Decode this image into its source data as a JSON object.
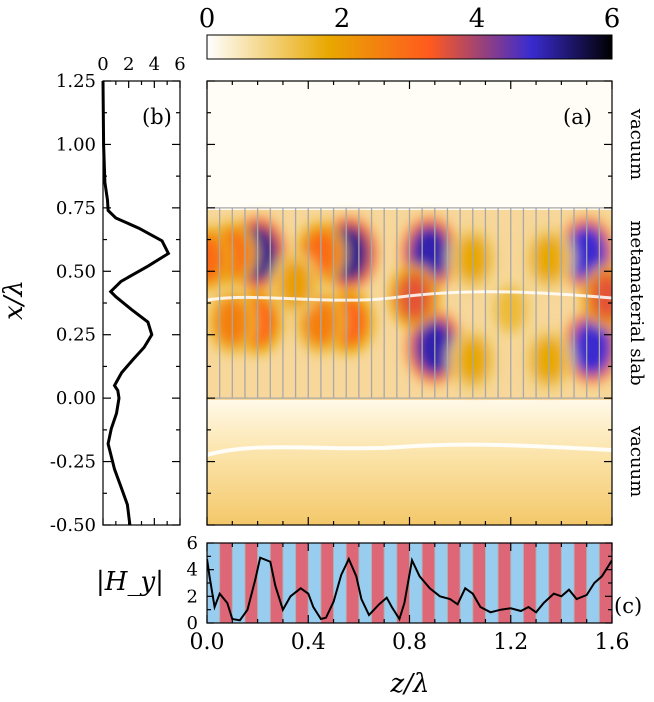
{
  "chart_data": [
    {
      "id": "a",
      "type": "heatmap",
      "panel_label": "(a)",
      "title": "",
      "xlabel": "z/λ",
      "ylabel": "x/λ",
      "xlim": [
        0.0,
        1.6
      ],
      "ylim": [
        -0.5,
        1.25
      ],
      "x_ticks": [
        0.0,
        0.4,
        0.8,
        1.2,
        1.6
      ],
      "x_tick_labels": [
        "0.0",
        "0.4",
        "0.8",
        "1.2",
        "1.6"
      ],
      "y_ticks": [
        -0.5,
        -0.25,
        0.0,
        0.25,
        0.5,
        0.75,
        1.0,
        1.25
      ],
      "y_tick_labels": [
        "-0.50",
        "-0.25",
        "0.00",
        "0.25",
        "0.50",
        "0.75",
        "1.00",
        "1.25"
      ],
      "colorbar": {
        "min": 0,
        "max": 6,
        "ticks": [
          0,
          2,
          4,
          6
        ],
        "tick_labels": [
          "0",
          "2",
          "4",
          "6"
        ],
        "colors": [
          "#ffffff",
          "#e8a800",
          "#ff5a1e",
          "#3a2bd0",
          "#000000"
        ]
      },
      "slab": {
        "x_from": 0.0,
        "x_to": 0.75,
        "layer_period_z": 0.05
      },
      "region_labels": [
        {
          "text": "vacuum",
          "x": 1.0
        },
        {
          "text": "metamaterial slab",
          "x": 0.375
        },
        {
          "text": "vacuum",
          "x": -0.25
        }
      ],
      "hotspots": [
        {
          "z": 0.2,
          "x": 0.57,
          "value": 5.2
        },
        {
          "z": 0.56,
          "x": 0.57,
          "value": 5.2
        },
        {
          "z": 0.2,
          "x": 0.3,
          "value": 3.2
        },
        {
          "z": 0.56,
          "x": 0.3,
          "value": 3.2
        },
        {
          "z": 0.1,
          "x": 0.57,
          "value": 3.0
        },
        {
          "z": 0.45,
          "x": 0.57,
          "value": 3.0
        },
        {
          "z": 0.1,
          "x": 0.3,
          "value": 2.6
        },
        {
          "z": 0.45,
          "x": 0.3,
          "value": 2.6
        },
        {
          "z": 0.0,
          "x": 0.55,
          "value": 3.0
        },
        {
          "z": 0.35,
          "x": 0.45,
          "value": 2.0
        },
        {
          "z": 0.88,
          "x": 0.57,
          "value": 5.0
        },
        {
          "z": 0.9,
          "x": 0.2,
          "value": 5.0
        },
        {
          "z": 0.82,
          "x": 0.4,
          "value": 3.5
        },
        {
          "z": 1.5,
          "x": 0.57,
          "value": 4.8
        },
        {
          "z": 1.52,
          "x": 0.2,
          "value": 4.8
        },
        {
          "z": 1.58,
          "x": 0.4,
          "value": 3.5
        },
        {
          "z": 1.05,
          "x": 0.55,
          "value": 1.8
        },
        {
          "z": 1.05,
          "x": 0.15,
          "value": 1.8
        },
        {
          "z": 1.35,
          "x": 0.55,
          "value": 1.8
        },
        {
          "z": 1.35,
          "x": 0.15,
          "value": 1.8
        },
        {
          "z": 1.2,
          "x": 0.35,
          "value": 1.4
        }
      ]
    },
    {
      "id": "b",
      "type": "line",
      "panel_label": "(b)",
      "xlabel": "",
      "ylabel": "x/λ",
      "xlim": [
        0,
        6
      ],
      "ylim": [
        -0.5,
        1.25
      ],
      "x_ticks": [
        0,
        2,
        4,
        6
      ],
      "x_tick_labels": [
        "0",
        "2",
        "4",
        "6"
      ],
      "points": [
        [
          2.1,
          -0.5
        ],
        [
          1.9,
          -0.42
        ],
        [
          1.4,
          -0.35
        ],
        [
          0.9,
          -0.28
        ],
        [
          0.6,
          -0.22
        ],
        [
          0.4,
          -0.18
        ],
        [
          0.65,
          -0.12
        ],
        [
          1.05,
          -0.06
        ],
        [
          1.25,
          0.0
        ],
        [
          1.15,
          0.03
        ],
        [
          0.9,
          0.05
        ],
        [
          1.45,
          0.1
        ],
        [
          2.3,
          0.15
        ],
        [
          3.2,
          0.2
        ],
        [
          3.8,
          0.25
        ],
        [
          3.5,
          0.3
        ],
        [
          2.2,
          0.35
        ],
        [
          1.0,
          0.4
        ],
        [
          0.6,
          0.42
        ],
        [
          1.4,
          0.46
        ],
        [
          3.5,
          0.52
        ],
        [
          5.1,
          0.57
        ],
        [
          4.6,
          0.62
        ],
        [
          2.8,
          0.67
        ],
        [
          1.0,
          0.71
        ],
        [
          0.4,
          0.74
        ],
        [
          0.35,
          0.78
        ],
        [
          0.15,
          0.85
        ],
        [
          0.05,
          1.0
        ],
        [
          0.0,
          1.25
        ]
      ]
    },
    {
      "id": "c",
      "type": "line",
      "panel_label": "(c)",
      "xlabel": "z/λ",
      "ylabel": "|H_y|",
      "xlim": [
        0.0,
        1.6
      ],
      "ylim": [
        0,
        6
      ],
      "y_ticks": [
        0,
        2,
        4,
        6
      ],
      "y_tick_labels": [
        "0",
        "2",
        "4",
        "6"
      ],
      "background_stripes": {
        "period_z": 0.05,
        "colors": [
          "#99cdf0",
          "#dd6677"
        ]
      },
      "points": [
        [
          0.0,
          4.8
        ],
        [
          0.01,
          3.5
        ],
        [
          0.03,
          1.2
        ],
        [
          0.05,
          2.2
        ],
        [
          0.08,
          1.5
        ],
        [
          0.1,
          0.3
        ],
        [
          0.13,
          0.2
        ],
        [
          0.16,
          1.0
        ],
        [
          0.19,
          3.2
        ],
        [
          0.21,
          4.9
        ],
        [
          0.25,
          4.6
        ],
        [
          0.27,
          2.8
        ],
        [
          0.3,
          1.0
        ],
        [
          0.33,
          2.0
        ],
        [
          0.37,
          2.6
        ],
        [
          0.4,
          2.2
        ],
        [
          0.42,
          1.2
        ],
        [
          0.45,
          0.3
        ],
        [
          0.47,
          0.4
        ],
        [
          0.5,
          1.6
        ],
        [
          0.53,
          3.6
        ],
        [
          0.56,
          4.8
        ],
        [
          0.59,
          3.5
        ],
        [
          0.61,
          1.8
        ],
        [
          0.64,
          0.6
        ],
        [
          0.68,
          1.4
        ],
        [
          0.71,
          1.9
        ],
        [
          0.73,
          1.2
        ],
        [
          0.76,
          0.3
        ],
        [
          0.78,
          1.5
        ],
        [
          0.81,
          4.7
        ],
        [
          0.84,
          3.5
        ],
        [
          0.88,
          2.6
        ],
        [
          0.92,
          2.0
        ],
        [
          0.96,
          1.8
        ],
        [
          0.99,
          1.4
        ],
        [
          1.02,
          2.6
        ],
        [
          1.05,
          2.2
        ],
        [
          1.08,
          1.2
        ],
        [
          1.12,
          0.8
        ],
        [
          1.16,
          1.0
        ],
        [
          1.2,
          1.1
        ],
        [
          1.24,
          0.9
        ],
        [
          1.27,
          1.2
        ],
        [
          1.3,
          0.8
        ],
        [
          1.33,
          1.5
        ],
        [
          1.37,
          2.2
        ],
        [
          1.4,
          2.0
        ],
        [
          1.43,
          2.5
        ],
        [
          1.46,
          1.8
        ],
        [
          1.5,
          2.1
        ],
        [
          1.53,
          3.0
        ],
        [
          1.56,
          3.5
        ],
        [
          1.6,
          4.7
        ]
      ]
    }
  ]
}
